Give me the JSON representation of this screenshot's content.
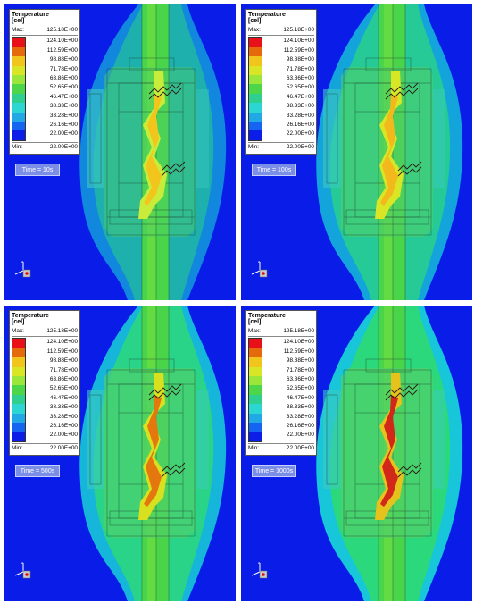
{
  "legend": {
    "title": "Temperature",
    "unit": "[cel]",
    "max_label": "Max:",
    "max_value": "125.18E+00",
    "min_label": "Min:",
    "min_value": "22.00E+00",
    "ticks": [
      "124.10E+00",
      "112.59E+00",
      "98.88E+00",
      "71.78E+00",
      "63.86E+00",
      "52.65E+00",
      "46.47E+00",
      "38.33E+00",
      "33.28E+00",
      "26.16E+00",
      "22.00E+00"
    ],
    "colors": [
      "#e8111a",
      "#e56a0b",
      "#f2c51c",
      "#d8e626",
      "#9be63a",
      "#4ed64a",
      "#2fd08f",
      "#2bd6d3",
      "#23a8e6",
      "#1565f2",
      "#0b1de6"
    ]
  },
  "panels": [
    {
      "time": "Time = 10s",
      "core_color": "#c9ec3a",
      "hot_color": "#f2c51c",
      "glow": 0.18
    },
    {
      "time": "Time = 100s",
      "core_color": "#d8e626",
      "hot_color": "#f2b81c",
      "glow": 0.55
    },
    {
      "time": "Time = 500s",
      "core_color": "#d8e020",
      "hot_color": "#e5770f",
      "glow": 0.8
    },
    {
      "time": "Time = 1000s",
      "core_color": "#e6c21c",
      "hot_color": "#d2281a",
      "glow": 1.0
    }
  ]
}
